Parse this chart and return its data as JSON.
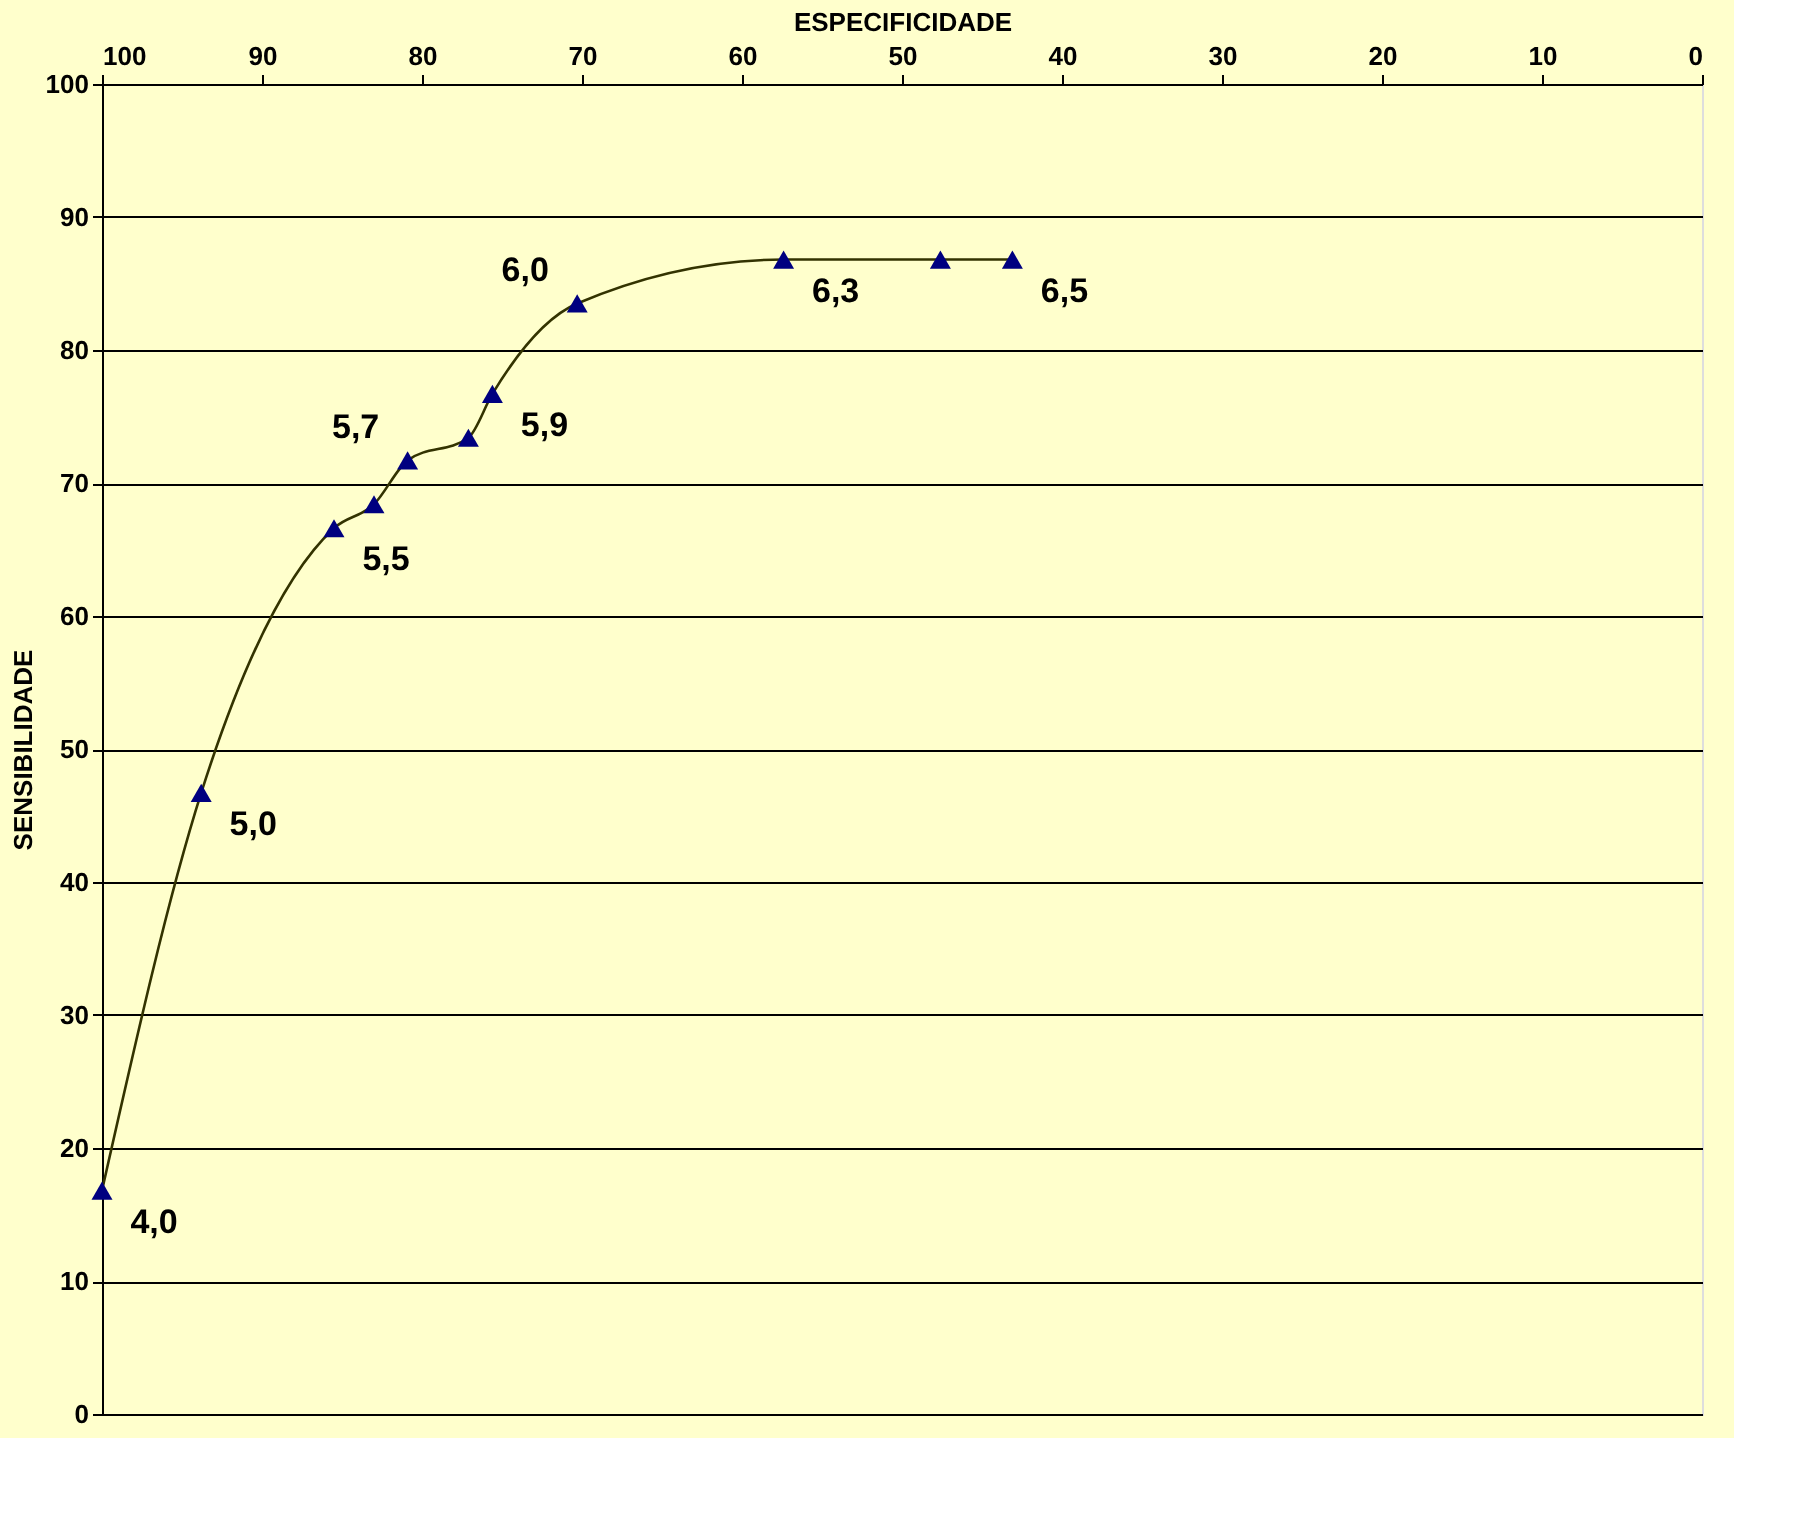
{
  "chart_data": {
    "type": "line",
    "xlabel": "ESPECIFICIDADE",
    "ylabel": "SENSIBILIDADE",
    "x": [
      100,
      93.8,
      85.5,
      83.0,
      80.9,
      77.1,
      75.6,
      70.3,
      57.4,
      47.6,
      43.1
    ],
    "series": [
      {
        "color": "#333300",
        "marker": "none",
        "line_style": "solid",
        "values": [
          16.8,
          46.7,
          66.6,
          68.4,
          71.7,
          73.4,
          76.7,
          83.5,
          86.8,
          86.8,
          86.8
        ]
      },
      {
        "type": "scatter",
        "color": "#000080",
        "marker": "triangle",
        "values": [
          16.8,
          46.7,
          66.6,
          68.4,
          71.7,
          73.4,
          76.7,
          83.5,
          86.8,
          86.8,
          86.8
        ]
      }
    ],
    "annotations": [
      {
        "text": "4,0",
        "x": 100,
        "y": 16.8
      },
      {
        "text": "5,0",
        "x": 93.8,
        "y": 46.7
      },
      {
        "text": "5,5",
        "x": 85.5,
        "y": 66.6
      },
      {
        "text": "5,7",
        "x": 80.9,
        "y": 71.7
      },
      {
        "text": "5,9",
        "x": 75.6,
        "y": 76.7
      },
      {
        "text": "6,0",
        "x": 70.3,
        "y": 83.5
      },
      {
        "text": "6,3",
        "x": 57.4,
        "y": 86.8
      },
      {
        "text": "6,5",
        "x": 43.1,
        "y": 86.8
      }
    ],
    "xlim": [
      100,
      0
    ],
    "xticks": [
      100,
      90,
      80,
      70,
      60,
      50,
      40,
      30,
      20,
      10,
      0
    ],
    "ylim": [
      0,
      100
    ],
    "yticks": [
      0,
      10,
      20,
      30,
      40,
      50,
      60,
      70,
      80,
      90,
      100
    ],
    "grid": "y"
  }
}
